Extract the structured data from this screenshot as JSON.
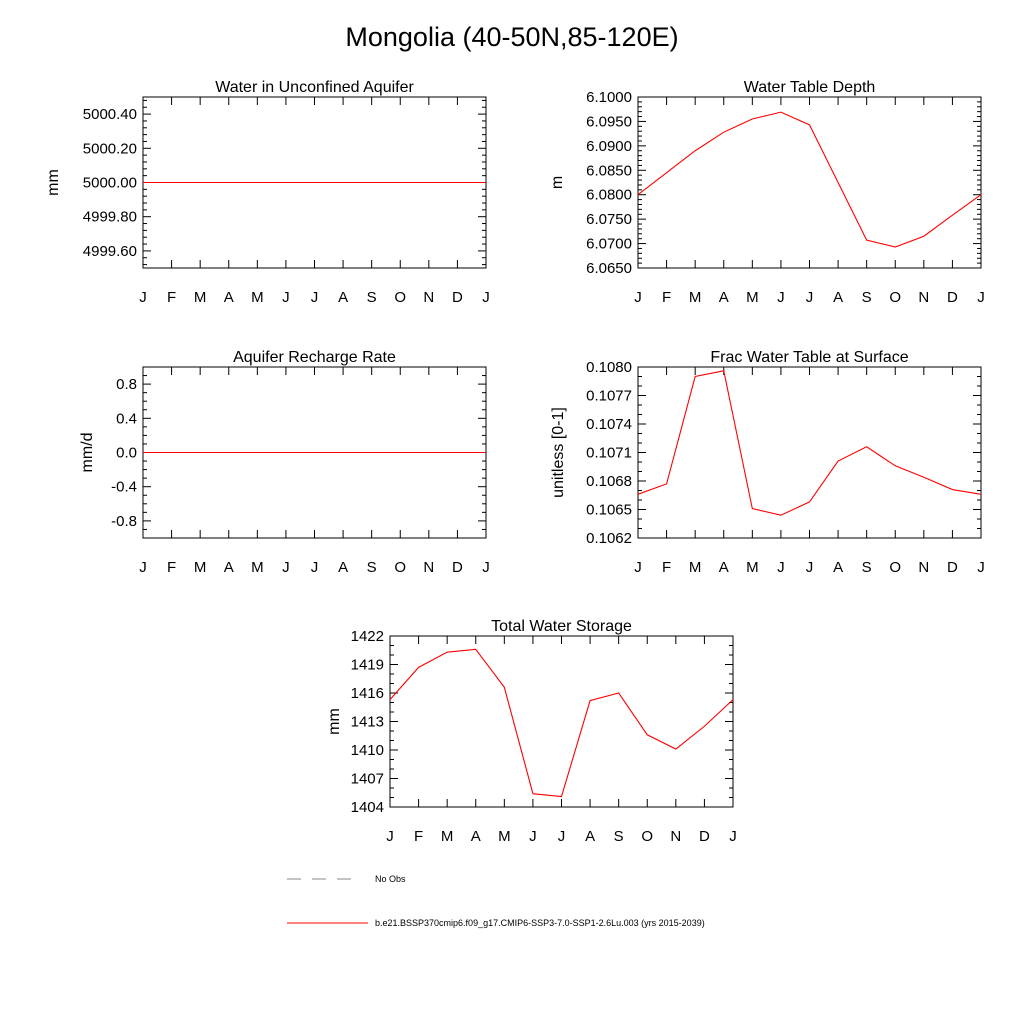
{
  "figure_title": "Mongolia (40-50N,85-120E)",
  "colors": {
    "model": "#ff0000",
    "obs": "#888888",
    "axis": "#000000"
  },
  "chart_data": [
    {
      "type": "line",
      "title": "Water in Unconfined Aquifer",
      "ylabel": "mm",
      "xlabel": "",
      "categories": [
        "J",
        "F",
        "M",
        "A",
        "M",
        "J",
        "J",
        "A",
        "S",
        "O",
        "N",
        "D",
        "J"
      ],
      "ylim": [
        4999.5,
        5000.5
      ],
      "yticks": [
        4999.6,
        4999.8,
        5000.0,
        5000.2,
        5000.4
      ],
      "ytick_labels": [
        "4999.60",
        "4999.80",
        "5000.00",
        "5000.20",
        "5000.40"
      ],
      "yminor": 4,
      "series": [
        {
          "name": "b.e21.BSSP370cmip6.f09_g17.CMIP6-SSP3-7.0-SSP1-2.6Lu.003 (yrs 2015-2039)",
          "values": [
            5000,
            5000,
            5000,
            5000,
            5000,
            5000,
            5000,
            5000,
            5000,
            5000,
            5000,
            5000,
            5000
          ]
        }
      ]
    },
    {
      "type": "line",
      "title": "Water Table Depth",
      "ylabel": "m",
      "xlabel": "",
      "categories": [
        "J",
        "F",
        "M",
        "A",
        "M",
        "J",
        "J",
        "A",
        "S",
        "O",
        "N",
        "D",
        "J"
      ],
      "ylim": [
        6.065,
        6.1
      ],
      "yticks": [
        6.065,
        6.07,
        6.075,
        6.08,
        6.085,
        6.09,
        6.095,
        6.1
      ],
      "ytick_labels": [
        "6.0650",
        "6.0700",
        "6.0750",
        "6.0800",
        "6.0850",
        "6.0900",
        "6.0950",
        "6.1000"
      ],
      "yminor": 4,
      "series": [
        {
          "name": "b.e21.BSSP370cmip6.f09_g17.CMIP6-SSP3-7.0-SSP1-2.6Lu.003 (yrs 2015-2039)",
          "values": [
            6.08,
            6.0845,
            6.089,
            6.0928,
            6.0955,
            6.0969,
            6.0943,
            6.0825,
            6.0707,
            6.0693,
            6.0715,
            6.0758,
            6.08
          ]
        }
      ]
    },
    {
      "type": "line",
      "title": "Aquifer Recharge Rate",
      "ylabel": "mm/d",
      "xlabel": "",
      "categories": [
        "J",
        "F",
        "M",
        "A",
        "M",
        "J",
        "J",
        "A",
        "S",
        "O",
        "N",
        "D",
        "J"
      ],
      "ylim": [
        -1.0,
        1.0
      ],
      "yticks": [
        -0.8,
        -0.4,
        0.0,
        0.4,
        0.8
      ],
      "ytick_labels": [
        "-0.8",
        "-0.4",
        "0.0",
        "0.4",
        "0.8"
      ],
      "yminor": 3,
      "series": [
        {
          "name": "b.e21.BSSP370cmip6.f09_g17.CMIP6-SSP3-7.0-SSP1-2.6Lu.003 (yrs 2015-2039)",
          "values": [
            0,
            0,
            0,
            0,
            0,
            0,
            0,
            0,
            0,
            0,
            0,
            0,
            0
          ]
        }
      ]
    },
    {
      "type": "line",
      "title": "Frac Water Table at Surface",
      "ylabel": "unitless [0-1]",
      "xlabel": "",
      "categories": [
        "J",
        "F",
        "M",
        "A",
        "M",
        "J",
        "J",
        "A",
        "S",
        "O",
        "N",
        "D",
        "J"
      ],
      "ylim": [
        0.1062,
        0.108
      ],
      "yticks": [
        0.1062,
        0.1065,
        0.1068,
        0.1071,
        0.1074,
        0.1077,
        0.108
      ],
      "ytick_labels": [
        "0.1062",
        "0.1065",
        "0.1068",
        "0.1071",
        "0.1074",
        "0.1077",
        "0.1080"
      ],
      "yminor": 2,
      "series": [
        {
          "name": "b.e21.BSSP370cmip6.f09_g17.CMIP6-SSP3-7.0-SSP1-2.6Lu.003 (yrs 2015-2039)",
          "values": [
            0.10666,
            0.10677,
            0.1079,
            0.10796,
            0.10651,
            0.10644,
            0.10658,
            0.10701,
            0.10716,
            0.10696,
            0.10684,
            0.10671,
            0.10666
          ]
        }
      ]
    },
    {
      "type": "line",
      "title": "Total Water Storage",
      "ylabel": "mm",
      "xlabel": "",
      "categories": [
        "J",
        "F",
        "M",
        "A",
        "M",
        "J",
        "J",
        "A",
        "S",
        "O",
        "N",
        "D",
        "J"
      ],
      "ylim": [
        1404,
        1422
      ],
      "yticks": [
        1404,
        1407,
        1410,
        1413,
        1416,
        1419,
        1422
      ],
      "ytick_labels": [
        "1404",
        "1407",
        "1410",
        "1413",
        "1416",
        "1419",
        "1422"
      ],
      "yminor": 2,
      "series": [
        {
          "name": "b.e21.BSSP370cmip6.f09_g17.CMIP6-SSP3-7.0-SSP1-2.6Lu.003 (yrs 2015-2039)",
          "values": [
            1415.3,
            1418.7,
            1420.3,
            1420.6,
            1416.6,
            1405.4,
            1405.1,
            1415.2,
            1416.0,
            1411.6,
            1410.1,
            1412.5,
            1415.3
          ]
        }
      ]
    }
  ],
  "legend": [
    {
      "label": "No Obs",
      "style": "dashed"
    },
    {
      "label": "b.e21.BSSP370cmip6.f09_g17.CMIP6-SSP3-7.0-SSP1-2.6Lu.003 (yrs 2015-2039)",
      "style": "solid"
    }
  ]
}
